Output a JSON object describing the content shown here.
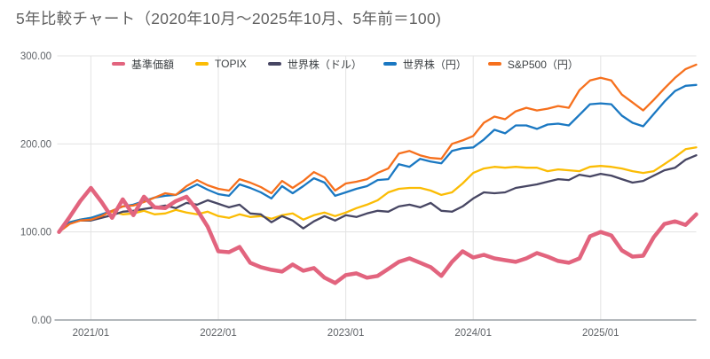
{
  "title": "5年比較チャート（2020年10月〜2025年10月、5年前＝100)",
  "colors": {
    "background": "#ffffff",
    "title": "#616161",
    "grid": "#e3e3e3",
    "axis_line": "#9aa0a6",
    "tick_label": "#5f6368",
    "legend_text": "#3c4043"
  },
  "chart_data": {
    "type": "line",
    "title": "5年比較チャート（2020年10月〜2025年10月、5年前＝100)",
    "xlabel": "",
    "ylabel": "",
    "ylim": [
      0,
      300
    ],
    "grid": true,
    "legend_position": "top",
    "y_ticks": [
      {
        "value": 0,
        "label": "0.00"
      },
      {
        "value": 100,
        "label": "100.00"
      },
      {
        "value": 200,
        "label": "200.00"
      },
      {
        "value": 300,
        "label": "300.00"
      }
    ],
    "x_ticks": [
      {
        "index": 3,
        "label": "2021/01"
      },
      {
        "index": 15,
        "label": "2022/01"
      },
      {
        "index": 27,
        "label": "2023/01"
      },
      {
        "index": 39,
        "label": "2024/01"
      },
      {
        "index": 51,
        "label": "2025/01"
      }
    ],
    "x": [
      "2020/10",
      "2020/11",
      "2020/12",
      "2021/01",
      "2021/02",
      "2021/03",
      "2021/04",
      "2021/05",
      "2021/06",
      "2021/07",
      "2021/08",
      "2021/09",
      "2021/10",
      "2021/11",
      "2021/12",
      "2022/01",
      "2022/02",
      "2022/03",
      "2022/04",
      "2022/05",
      "2022/06",
      "2022/07",
      "2022/08",
      "2022/09",
      "2022/10",
      "2022/11",
      "2022/12",
      "2023/01",
      "2023/02",
      "2023/03",
      "2023/04",
      "2023/05",
      "2023/06",
      "2023/07",
      "2023/08",
      "2023/09",
      "2023/10",
      "2023/11",
      "2023/12",
      "2024/01",
      "2024/02",
      "2024/03",
      "2024/04",
      "2024/05",
      "2024/06",
      "2024/07",
      "2024/08",
      "2024/09",
      "2024/10",
      "2024/11",
      "2024/12",
      "2025/01",
      "2025/02",
      "2025/03",
      "2025/04",
      "2025/05",
      "2025/06",
      "2025/07",
      "2025/08",
      "2025/09",
      "2025/10"
    ],
    "series": [
      {
        "name": "基準価額",
        "color": "#e2647e",
        "line_width": 4.5,
        "values": [
          100,
          117,
          135,
          150,
          134,
          116,
          137,
          119,
          140,
          128,
          127,
          135,
          140,
          125,
          106,
          78,
          77,
          83,
          65,
          60,
          57,
          55,
          63,
          56,
          59,
          48,
          42,
          51,
          53,
          48,
          50,
          58,
          66,
          70,
          65,
          60,
          50,
          66,
          78,
          71,
          74,
          70,
          68,
          66,
          70,
          76,
          72,
          67,
          65,
          70,
          95,
          100,
          96,
          79,
          72,
          73,
          94,
          109,
          112,
          108,
          120
        ]
      },
      {
        "name": "TOPIX",
        "color": "#fbbc04",
        "line_width": 2.3,
        "values": [
          100,
          111,
          114,
          116,
          119,
          123,
          120,
          121,
          124,
          120,
          121,
          125,
          122,
          120,
          123,
          118,
          116,
          120,
          117,
          118,
          115,
          119,
          121,
          114,
          119,
          122,
          118,
          122,
          127,
          131,
          136,
          145,
          149,
          150,
          150,
          147,
          142,
          145,
          155,
          167,
          172,
          174,
          173,
          174,
          173,
          173,
          169,
          171,
          170,
          169,
          174,
          175,
          174,
          172,
          169,
          167,
          169,
          177,
          185,
          194,
          196
        ]
      },
      {
        "name": "世界株（ドル）",
        "color": "#474663",
        "line_width": 2.3,
        "values": [
          100,
          110,
          113,
          113,
          116,
          119,
          123,
          124,
          126,
          128,
          130,
          127,
          133,
          131,
          136,
          132,
          128,
          131,
          121,
          120,
          111,
          118,
          113,
          104,
          112,
          118,
          113,
          119,
          117,
          121,
          124,
          123,
          129,
          131,
          128,
          133,
          124,
          123,
          129,
          138,
          145,
          144,
          145,
          150,
          152,
          154,
          157,
          160,
          159,
          165,
          163,
          166,
          164,
          160,
          156,
          158,
          164,
          170,
          173,
          182,
          187
        ]
      },
      {
        "name": "世界株（円）",
        "color": "#1a78c2",
        "line_width": 2.3,
        "values": [
          100,
          111,
          114,
          116,
          120,
          124,
          129,
          131,
          135,
          139,
          141,
          142,
          148,
          154,
          148,
          143,
          141,
          154,
          150,
          145,
          138,
          152,
          144,
          152,
          161,
          156,
          141,
          145,
          149,
          152,
          159,
          160,
          177,
          174,
          183,
          180,
          178,
          192,
          195,
          196,
          205,
          216,
          212,
          221,
          221,
          217,
          222,
          223,
          221,
          233,
          245,
          246,
          245,
          232,
          224,
          220,
          234,
          248,
          260,
          266,
          267
        ]
      },
      {
        "name": "S&P500（円）",
        "color": "#f6701d",
        "line_width": 2.3,
        "values": [
          100,
          109,
          113,
          114,
          118,
          124,
          129,
          130,
          134,
          139,
          144,
          142,
          152,
          159,
          153,
          149,
          147,
          160,
          156,
          151,
          144,
          158,
          150,
          158,
          168,
          162,
          147,
          155,
          157,
          160,
          167,
          172,
          189,
          192,
          187,
          184,
          183,
          200,
          204,
          209,
          224,
          231,
          228,
          237,
          241,
          238,
          240,
          243,
          241,
          261,
          272,
          275,
          272,
          256,
          247,
          238,
          250,
          263,
          275,
          285,
          290
        ]
      }
    ]
  }
}
